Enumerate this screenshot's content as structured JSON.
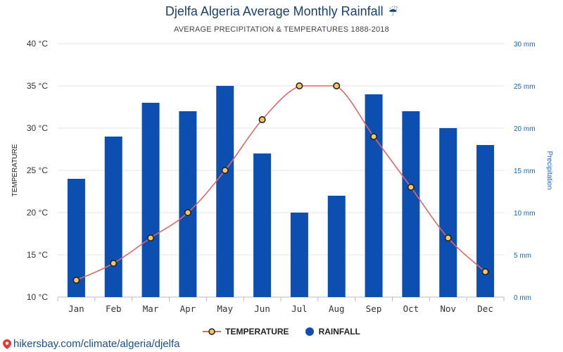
{
  "chart_data": {
    "type": "bar+line",
    "title": "Djelfa Algeria Average Monthly Rainfall",
    "title_icon": "☔",
    "subtitle": "AVERAGE PRECIPITATION & TEMPERATURES 1888-2018",
    "categories": [
      "Jan",
      "Feb",
      "Mar",
      "Apr",
      "May",
      "Jun",
      "Jul",
      "Aug",
      "Sep",
      "Oct",
      "Nov",
      "Dec"
    ],
    "series": [
      {
        "name": "RAINFALL",
        "type": "bar",
        "axis": "right",
        "unit": "mm",
        "color": "#0d4fb0",
        "values": [
          14,
          19,
          23,
          22,
          25,
          17,
          10,
          12,
          24,
          22,
          20,
          18
        ]
      },
      {
        "name": "TEMPERATURE",
        "type": "line",
        "axis": "left",
        "unit": "°C",
        "color": "#e06666",
        "values": [
          12,
          14,
          17,
          20,
          25,
          31,
          35,
          35,
          29,
          23,
          17,
          13
        ]
      }
    ],
    "ylabel_left": "TEMPERATURE",
    "ylabel_right": "Precipitation",
    "ylim_left": [
      10,
      40
    ],
    "ylim_right": [
      0,
      30
    ],
    "yticks_left": [
      "10 °C",
      "15 °C",
      "20 °C",
      "25 °C",
      "30 °C",
      "35 °C",
      "40 °C"
    ],
    "yticks_right": [
      "0 mm",
      "5 mm",
      "10 mm",
      "15 mm",
      "20 mm",
      "25 mm",
      "30 mm"
    ],
    "grid": true,
    "legend_position": "bottom-center"
  },
  "legend": {
    "temperature": "TEMPERATURE",
    "rainfall": "RAINFALL"
  },
  "footer": {
    "url": "hikersbay.com/climate/algeria/djelfa"
  }
}
